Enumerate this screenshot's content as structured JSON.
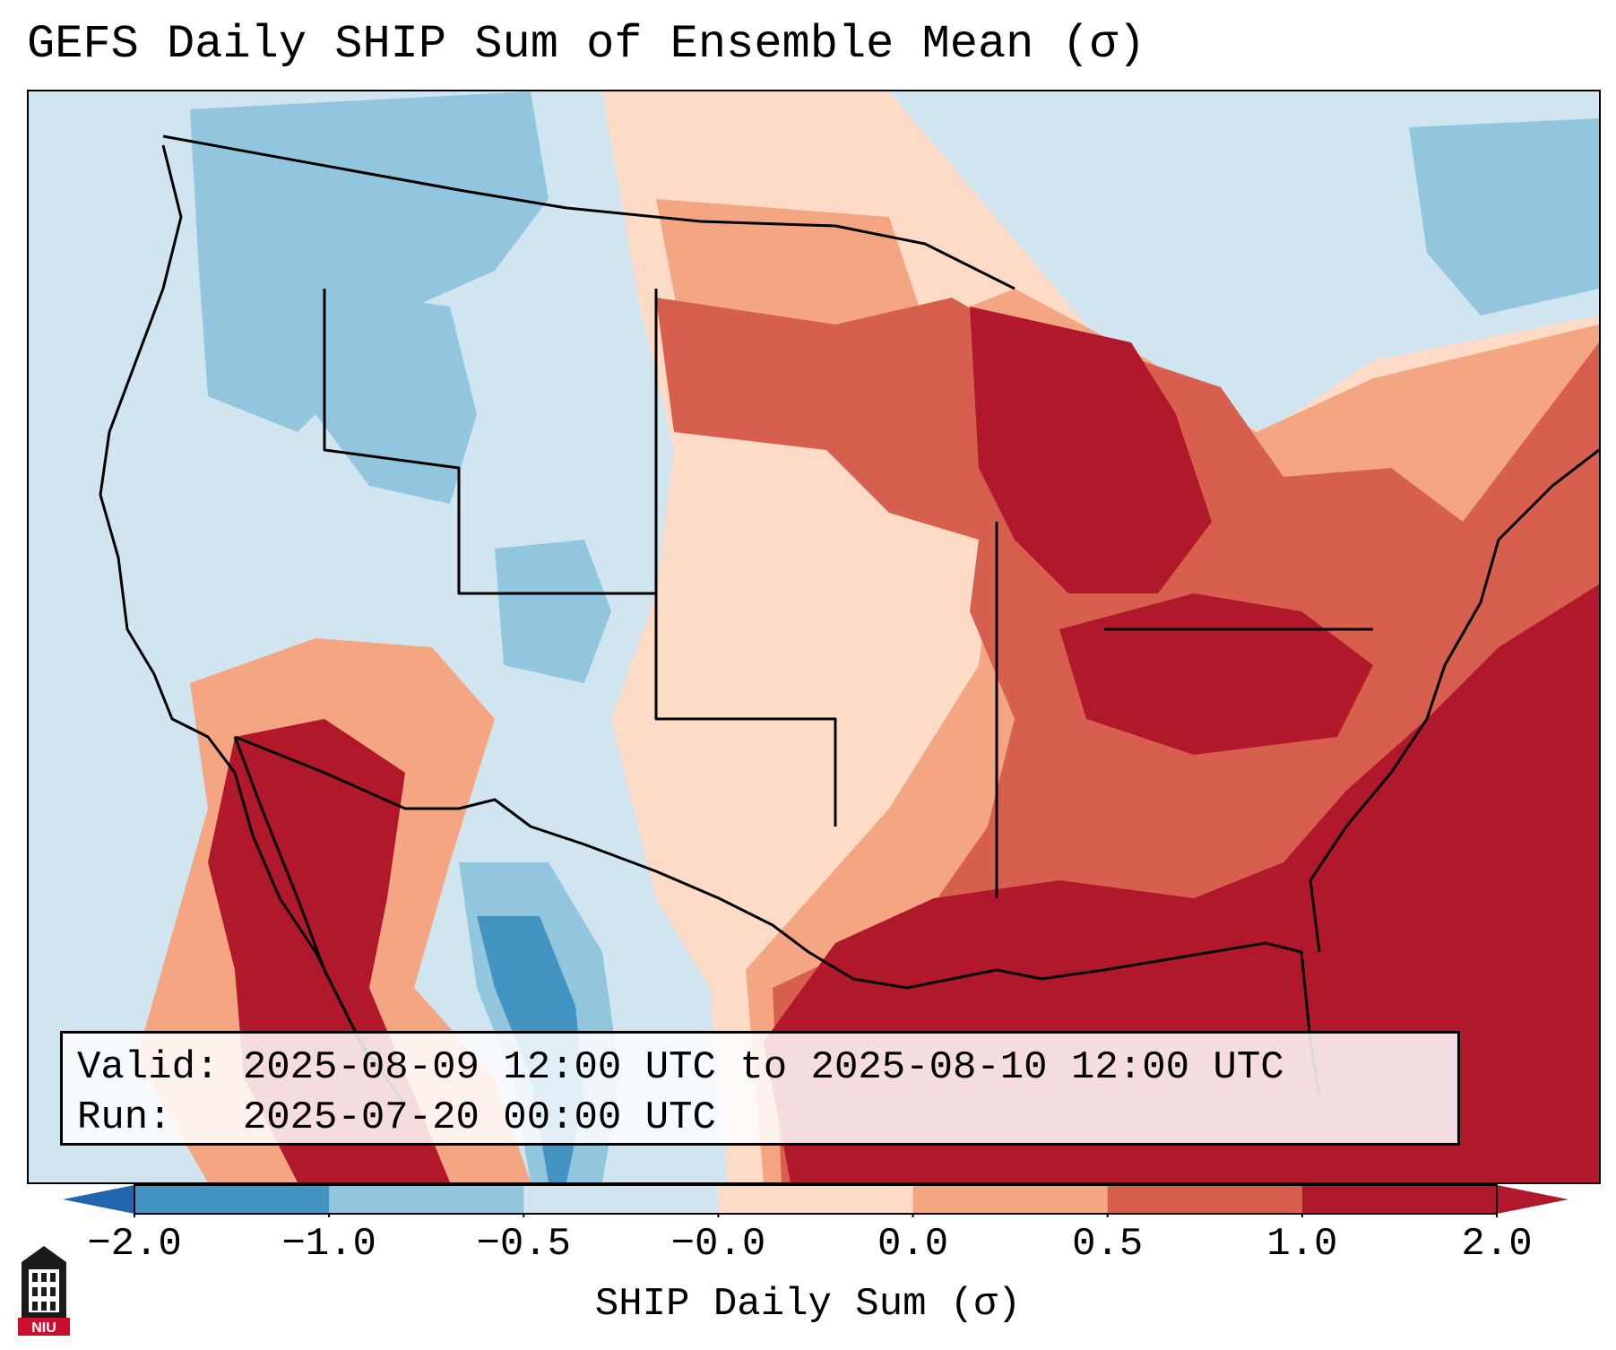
{
  "title": "GEFS Daily SHIP Sum of Ensemble Mean (σ)",
  "info": {
    "valid_label": "Valid:",
    "valid_value": "2025-08-09 12:00 UTC to 2025-08-10 12:00 UTC",
    "run_label": "Run:",
    "run_value": "2025-07-20 00:00 UTC"
  },
  "colorbar": {
    "label": "SHIP Daily Sum (σ)",
    "ticks": [
      "−2.0",
      "−1.0",
      "−0.5",
      "−0.0",
      "0.0",
      "0.5",
      "1.0",
      "2.0"
    ],
    "colors": [
      "#4393c3",
      "#92c5de",
      "#d1e5f0",
      "#f7f7f7",
      "#fddbc7",
      "#f4a582",
      "#d6604d",
      "#b2182b"
    ],
    "under_color": "#2166ac",
    "over_color": "#67001f"
  },
  "logo": {
    "icon": "university-tower-icon",
    "text": "NIU"
  }
}
